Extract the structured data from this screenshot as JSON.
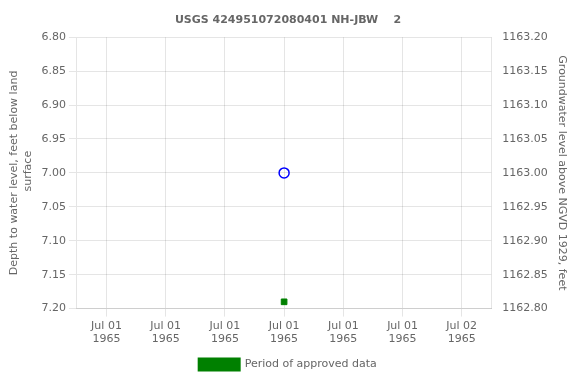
{
  "chart_data": {
    "type": "scatter",
    "title": "USGS 424951072080401 NH-JBW    2",
    "y_label": "Depth to water level, feet below land\n surface",
    "y2_label": "Groundwater level above NGVD 1929, feet",
    "categories": [
      "Jul 01\n1965",
      "Jul 01\n1965",
      "Jul 01\n1965",
      "Jul 01\n1965",
      "Jul 01\n1965",
      "Jul 01\n1965",
      "Jul 02\n1965"
    ],
    "series": [
      {
        "color": "blue",
        "marker": "open_circle",
        "values": [
          null,
          null,
          null,
          7.0,
          null,
          null,
          null
        ]
      },
      {
        "name": "Period of approved data",
        "color": "green",
        "marker": "square",
        "values": [
          null,
          null,
          null,
          7.19,
          null,
          null,
          null
        ]
      }
    ],
    "ylim": [
      7.2,
      6.8
    ],
    "yticks": [
      {
        "value": 6.8,
        "label": "6.80"
      },
      {
        "value": 6.85,
        "label": "6.85"
      },
      {
        "value": 6.9,
        "label": "6.90"
      },
      {
        "value": 6.95,
        "label": "6.95"
      },
      {
        "value": 7.0,
        "label": "7.00"
      },
      {
        "value": 7.05,
        "label": "7.05"
      },
      {
        "value": 7.1,
        "label": "7.10"
      },
      {
        "value": 7.15,
        "label": "7.15"
      },
      {
        "value": 7.2,
        "label": "7.20"
      }
    ],
    "y2lim": [
      1162.8,
      1163.2
    ],
    "y2ticks": [
      {
        "value": 1163.2,
        "label": "1163.20"
      },
      {
        "value": 1163.15,
        "label": "1163.15"
      },
      {
        "value": 1163.1,
        "label": "1163.10"
      },
      {
        "value": 1163.05,
        "label": "1163.05"
      },
      {
        "value": 1163.0,
        "label": "1163.00"
      },
      {
        "value": 1162.95,
        "label": "1162.95"
      },
      {
        "value": 1162.9,
        "label": "1162.90"
      },
      {
        "value": 1162.85,
        "label": "1162.85"
      },
      {
        "value": 1162.8,
        "label": "1162.80"
      }
    ],
    "grid": true,
    "legend": "bottom"
  }
}
